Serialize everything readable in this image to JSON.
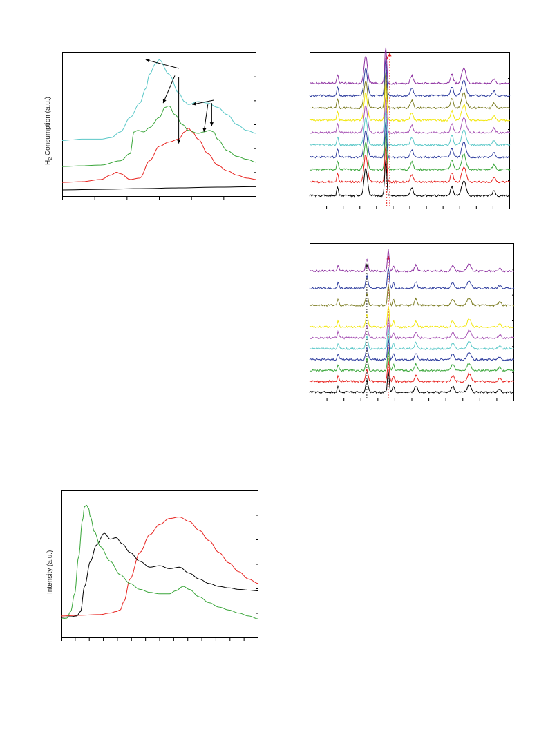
{
  "page": {
    "background": "#ffffff"
  },
  "ylabels": {
    "tpr_main": "H",
    "tpr_sub": "2",
    "tpr_rest": " Consumption (a.u.)",
    "intensity": "Intensity (a.u.)"
  },
  "chart_data": [
    {
      "id": "tpr",
      "type": "line",
      "title": "",
      "xlabel": "",
      "ylabel": "H2 Consumption (a.u.)",
      "xlim": [
        0,
        100
      ],
      "ylim": [
        0,
        100
      ],
      "x_ticks": 7,
      "grid": false,
      "series": [
        {
          "color": "#000000",
          "x": [
            0,
            20,
            40,
            60,
            80,
            100
          ],
          "y": [
            4.8,
            5.2,
            5.7,
            6.2,
            6.7,
            7.0
          ]
        },
        {
          "color": "#e8231f",
          "x": [
            0,
            10,
            20,
            25,
            28,
            30,
            35,
            40,
            45,
            50,
            55,
            60,
            63,
            65,
            67,
            70,
            75,
            80,
            85,
            90,
            95,
            100
          ],
          "y": [
            10,
            10.5,
            12,
            15,
            17,
            16,
            12,
            13,
            25,
            35,
            38,
            40,
            45,
            47.5,
            45,
            40,
            30,
            22,
            18,
            15,
            13,
            12
          ]
        },
        {
          "color": "#3aa63a",
          "x": [
            0,
            10,
            20,
            30,
            35,
            37,
            39,
            42,
            45,
            50,
            53,
            55,
            58,
            62,
            65,
            70,
            73,
            76,
            78,
            80,
            85,
            90,
            95,
            100
          ],
          "y": [
            21,
            21.5,
            22,
            25,
            30,
            45,
            46,
            45,
            48,
            55,
            62,
            63,
            57,
            50,
            46,
            44,
            45,
            46,
            45,
            40,
            32,
            28,
            26,
            24
          ]
        },
        {
          "color": "#5bc8c8",
          "x": [
            0,
            5,
            10,
            20,
            25,
            30,
            35,
            40,
            43,
            45,
            48,
            50,
            55,
            60,
            63,
            65,
            70,
            75,
            80,
            85,
            90,
            95,
            100
          ],
          "y": [
            39,
            39.5,
            40,
            40,
            41,
            45,
            55,
            65,
            75,
            85,
            92,
            95,
            85,
            72,
            66,
            64,
            66,
            65,
            62,
            57,
            50,
            46,
            44
          ]
        }
      ],
      "annotations": [
        {
          "from": [
            60,
            89
          ],
          "to": [
            43,
            95
          ]
        },
        {
          "from": [
            58,
            84
          ],
          "to": [
            52,
            65
          ]
        },
        {
          "from": [
            60,
            83
          ],
          "to": [
            60,
            37
          ]
        },
        {
          "from": [
            78,
            67
          ],
          "to": [
            67,
            64
          ]
        },
        {
          "from": [
            75,
            64
          ],
          "to": [
            73,
            45
          ]
        },
        {
          "from": [
            77,
            65
          ],
          "to": [
            77,
            49
          ]
        }
      ]
    },
    {
      "id": "xrd_top",
      "type": "line",
      "title": "",
      "xlabel": "",
      "ylabel": "",
      "xlim": [
        0,
        100
      ],
      "ylim": [
        0,
        100
      ],
      "x_ticks": 13,
      "grid": false,
      "series": [
        {
          "color": "#000000",
          "base": 7
        },
        {
          "color": "#e8231f",
          "base": 16
        },
        {
          "color": "#3aa63a",
          "base": 24
        },
        {
          "color": "#2e3d9e",
          "base": 32
        },
        {
          "color": "#5bc8c8",
          "base": 40
        },
        {
          "color": "#a855b5",
          "base": 48
        },
        {
          "color": "#f2e70d",
          "base": 56
        },
        {
          "color": "#7a7a1e",
          "base": 64
        },
        {
          "color": "#2e3d9e",
          "base": 72
        },
        {
          "color": "#8d2fa0",
          "base": 80
        }
      ],
      "peaks": [
        {
          "x": 14,
          "h": 6,
          "w": 0.6
        },
        {
          "x": 28,
          "h": 18,
          "w": 1.2
        },
        {
          "x": 38,
          "h": 24,
          "w": 0.7
        },
        {
          "x": 51,
          "h": 5,
          "w": 1.0
        },
        {
          "x": 71,
          "h": 6,
          "w": 1.0
        },
        {
          "x": 77,
          "h": 10,
          "w": 1.5
        },
        {
          "x": 92,
          "h": 3,
          "w": 1.0
        }
      ],
      "markers": [
        {
          "x": 38.5,
          "color": "#e8231f",
          "y_top": 98
        },
        {
          "x": 40,
          "color": "#e8231f",
          "y_top": 100
        }
      ]
    },
    {
      "id": "xrd_bottom",
      "type": "line",
      "title": "",
      "xlabel": "",
      "ylabel": "",
      "xlim": [
        0,
        100
      ],
      "ylim": [
        0,
        100
      ],
      "x_ticks": 13,
      "grid": false,
      "series": [
        {
          "color": "#000000",
          "base": 4
        },
        {
          "color": "#e8231f",
          "base": 11
        },
        {
          "color": "#3aa63a",
          "base": 18
        },
        {
          "color": "#2e3d9e",
          "base": 25
        },
        {
          "color": "#5bc8c8",
          "base": 32
        },
        {
          "color": "#a855b5",
          "base": 39
        },
        {
          "color": "#f2e70d",
          "base": 46
        },
        {
          "color": "#7a7a1e",
          "base": 60
        },
        {
          "color": "#2e3d9e",
          "base": 71
        },
        {
          "color": "#8d2fa0",
          "base": 82
        }
      ],
      "peaks": [
        {
          "x": 14,
          "h": 4,
          "w": 0.6
        },
        {
          "x": 28,
          "h": 8,
          "w": 0.8
        },
        {
          "x": 38.5,
          "h": 14,
          "w": 0.6
        },
        {
          "x": 41,
          "h": 4,
          "w": 0.6
        },
        {
          "x": 52,
          "h": 4,
          "w": 0.9
        },
        {
          "x": 70,
          "h": 4,
          "w": 1.0
        },
        {
          "x": 78,
          "h": 5,
          "w": 1.3
        },
        {
          "x": 93,
          "h": 2,
          "w": 1.0
        }
      ],
      "markers": [
        {
          "x": 28,
          "color": "#222222",
          "y_top": 87
        },
        {
          "x": 38.5,
          "color": "#e8231f",
          "y_top": 92
        }
      ]
    },
    {
      "id": "spectra",
      "type": "line",
      "title": "",
      "xlabel": "",
      "ylabel": "Intensity (a.u.)",
      "xlim": [
        0,
        100
      ],
      "ylim": [
        0,
        100
      ],
      "x_ticks": 15,
      "grid": false,
      "series": [
        {
          "color": "#e8231f",
          "x": [
            0,
            10,
            20,
            25,
            28,
            30,
            32,
            35,
            40,
            45,
            50,
            55,
            60,
            65,
            70,
            75,
            80,
            85,
            90,
            95,
            100
          ],
          "y": [
            15,
            15.5,
            16,
            17,
            18,
            19,
            25,
            40,
            58,
            70,
            77,
            81,
            82,
            79,
            73,
            66,
            58,
            51,
            45,
            40,
            37
          ]
        },
        {
          "color": "#000000",
          "x": [
            0,
            5,
            8,
            10,
            12,
            15,
            18,
            22,
            25,
            28,
            31,
            35,
            40,
            45,
            50,
            55,
            60,
            65,
            70,
            75,
            80,
            85,
            90,
            95,
            100
          ],
          "y": [
            14,
            14.5,
            15,
            18,
            35,
            52,
            63,
            71,
            67,
            68,
            64,
            58,
            52,
            48,
            49,
            47,
            48,
            44,
            40,
            37,
            35,
            34,
            33,
            32.5,
            32
          ]
        },
        {
          "color": "#3aa63a",
          "x": [
            0,
            3,
            5,
            7,
            9,
            11,
            12,
            13,
            14,
            15,
            17,
            20,
            25,
            30,
            35,
            40,
            45,
            50,
            55,
            58,
            62,
            65,
            70,
            75,
            80,
            85,
            90,
            95,
            100
          ],
          "y": [
            13,
            13.5,
            18,
            30,
            55,
            80,
            89,
            90,
            88,
            82,
            72,
            62,
            52,
            43,
            37,
            33,
            31,
            30,
            30,
            32,
            35,
            33,
            28,
            24,
            21,
            19,
            17,
            15,
            13
          ]
        }
      ]
    }
  ]
}
